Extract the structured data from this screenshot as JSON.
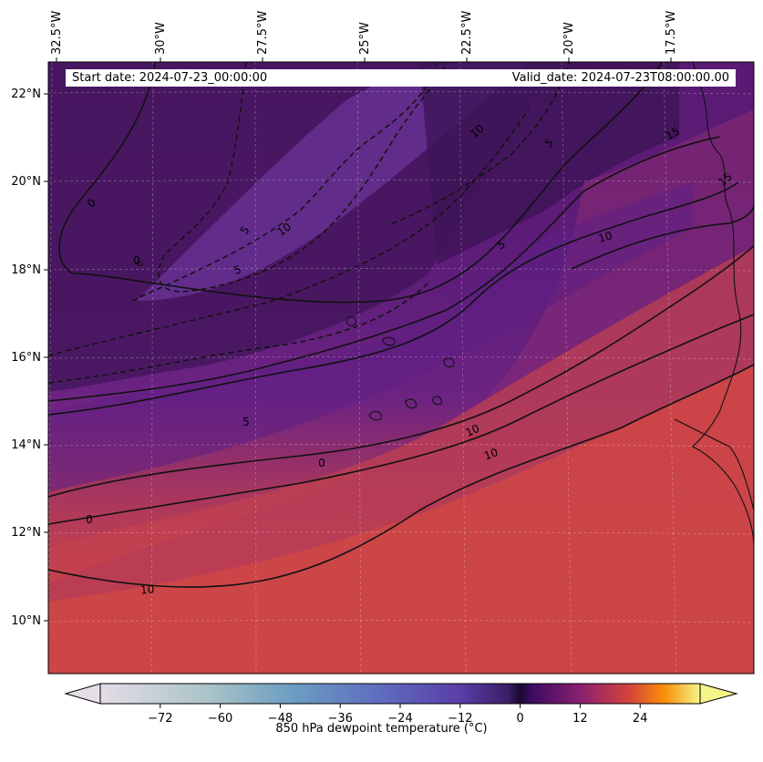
{
  "header": {
    "start_date": "Start date: 2024-07-23_00:00:00",
    "valid_date": "Valid_date: 2024-07-23T08:00:00.00"
  },
  "map": {
    "variable": "850 hPa dewpoint temperature",
    "lon_ticks": [
      "32.5°W",
      "30°W",
      "27.5°W",
      "25°W",
      "22.5°W",
      "20°W",
      "17.5°W"
    ],
    "lat_ticks": [
      "22°N",
      "20°N",
      "18°N",
      "16°N",
      "14°N",
      "12°N",
      "10°N"
    ],
    "contour_labels": [
      "0",
      "0",
      "5",
      "5",
      "5",
      "5",
      "10",
      "10",
      "10",
      "10",
      "10",
      "15",
      "15",
      "10",
      "5",
      "0",
      "0"
    ],
    "colormap": "inferno-like",
    "grid": true
  },
  "colorbar": {
    "label": "850 hPa dewpoint temperature ($^\\circ$C)",
    "label_display": "850 hPa dewpoint temperature (°C)",
    "ticks": [
      "−72",
      "−60",
      "−48",
      "−36",
      "−24",
      "−12",
      "0",
      "12",
      "24"
    ],
    "tick_values": [
      -72,
      -60,
      -48,
      -36,
      -24,
      -12,
      0,
      12,
      24
    ],
    "vmin": -84,
    "vmax": 36,
    "extend": "both"
  },
  "colors": {
    "deep_purple": "#3a1458",
    "purple": "#5b1f86",
    "mid_purple": "#6a2a8f",
    "magenta": "#8a2b7d",
    "red": "#c7414f",
    "orange_red": "#d34a41"
  }
}
